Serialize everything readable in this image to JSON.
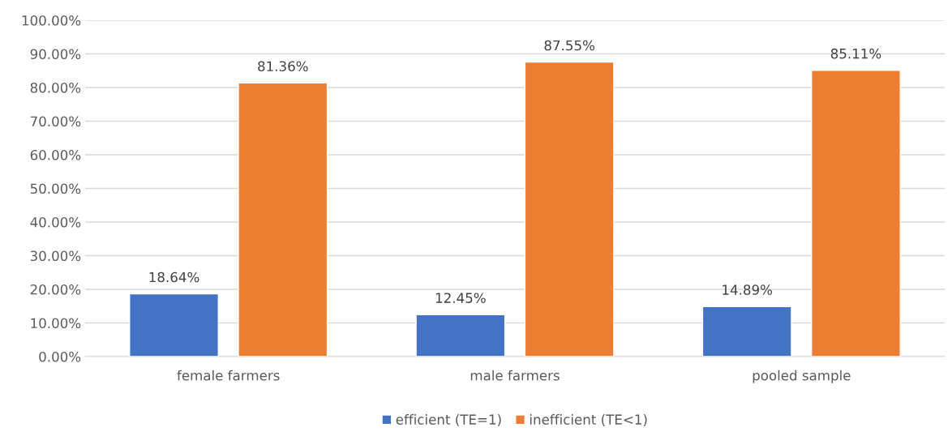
{
  "chart_data": {
    "type": "bar",
    "categories": [
      "female farmers",
      "male farmers",
      "pooled sample"
    ],
    "series": [
      {
        "name": "efficient (TE=1)",
        "color": "#4472c4",
        "values": [
          18.64,
          12.45,
          14.89
        ],
        "value_labels": [
          "18.64%",
          "12.45%",
          "14.89%"
        ]
      },
      {
        "name": "inefficient (TE<1)",
        "color": "#ed7d31",
        "values": [
          81.36,
          87.55,
          85.11
        ],
        "value_labels": [
          "81.36%",
          "87.55%",
          "85.11%"
        ]
      }
    ],
    "ylim": [
      0,
      100
    ],
    "yticks": [
      {
        "value": 0,
        "label": "0.00%"
      },
      {
        "value": 10,
        "label": "10.00%"
      },
      {
        "value": 20,
        "label": "20.00%"
      },
      {
        "value": 30,
        "label": "30.00%"
      },
      {
        "value": 40,
        "label": "40.00%"
      },
      {
        "value": 50,
        "label": "50.00%"
      },
      {
        "value": 60,
        "label": "60.00%"
      },
      {
        "value": 70,
        "label": "70.00%"
      },
      {
        "value": 80,
        "label": "80.00%"
      },
      {
        "value": 90,
        "label": "90.00%"
      },
      {
        "value": 100,
        "label": "100.00%"
      }
    ],
    "grid": "y",
    "legend": "bottom"
  }
}
